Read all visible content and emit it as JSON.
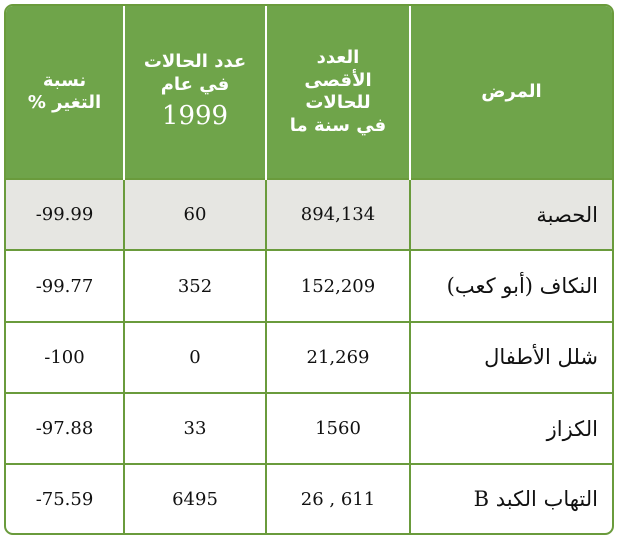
{
  "headers": {
    "change_line1": "نسبة",
    "change_line2": "التغير %",
    "cases_line1": "عدد الحالات",
    "cases_line2": "في عام",
    "cases_year": "1999",
    "max_line1": "العدد",
    "max_line2": "الأقصى",
    "max_line3": "للحالات",
    "max_line4": "في سنة ما",
    "disease": "المرض"
  },
  "rows": [
    {
      "disease": "الحصبة",
      "max_cases": "894,134",
      "cases_1999": "60",
      "change": "-99.99"
    },
    {
      "disease": "النكاف (أبو كعب)",
      "max_cases": "152,209",
      "cases_1999": "352",
      "change": "-99.77"
    },
    {
      "disease": "شلل الأطفال",
      "max_cases": "21,269",
      "cases_1999": "0",
      "change": "-100"
    },
    {
      "disease": "الكزاز",
      "max_cases": "1560",
      "cases_1999": "33",
      "change": "-97.88"
    },
    {
      "disease": "التهاب الكبد B",
      "max_cases": "26 , 611",
      "cases_1999": "6495",
      "change": "-75.59"
    }
  ],
  "colors": {
    "header_bg": "#6fa44a",
    "border": "#6a9b3c",
    "shaded_row": "#e6e6e2"
  }
}
